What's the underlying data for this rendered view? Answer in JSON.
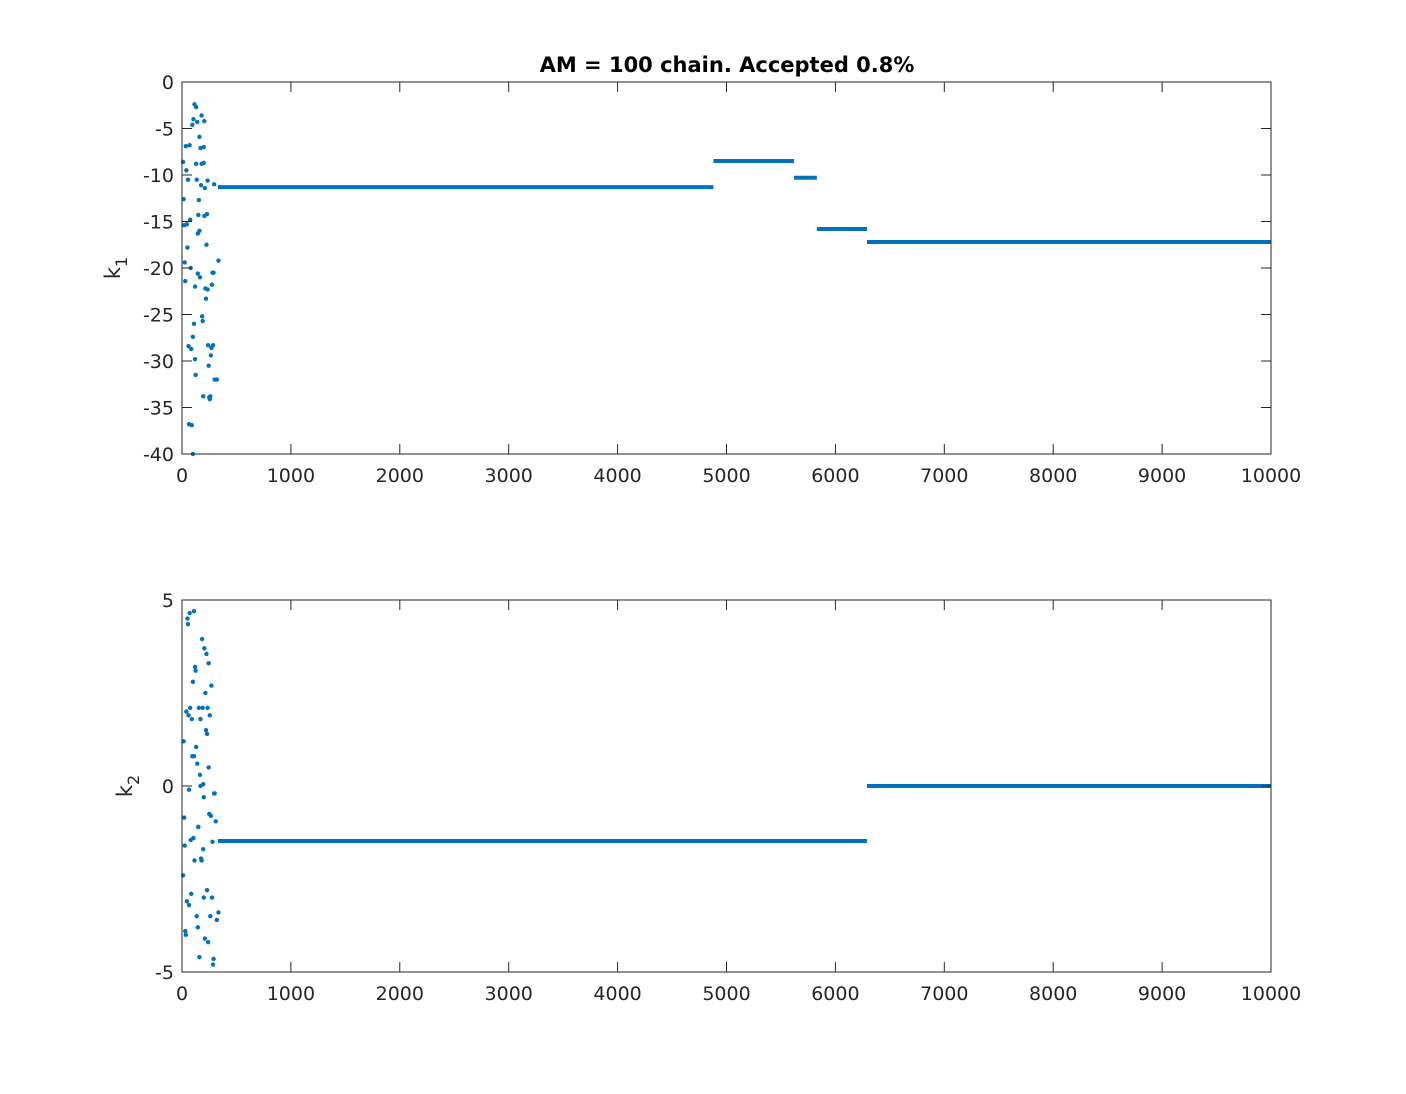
{
  "chart_data": [
    {
      "type": "scatter",
      "title": "AM = 100 chain. Accepted 0.8%",
      "ylabel_main": "k",
      "ylabel_sub": "1",
      "xlim": [
        0,
        10000
      ],
      "ylim": [
        -40,
        0
      ],
      "xticks": [
        0,
        1000,
        2000,
        3000,
        4000,
        5000,
        6000,
        7000,
        8000,
        9000,
        10000
      ],
      "yticks": [
        0,
        -5,
        -10,
        -15,
        -20,
        -25,
        -30,
        -35,
        -40
      ],
      "color": "#0072BD",
      "points": [
        [
          10,
          -8.6
        ],
        [
          15,
          -12.6
        ],
        [
          20,
          -15.4
        ],
        [
          25,
          -19.4
        ],
        [
          30,
          -21.4
        ],
        [
          35,
          -6.9
        ],
        [
          40,
          -9.5
        ],
        [
          45,
          -15.3
        ],
        [
          50,
          -17.8
        ],
        [
          55,
          -10.5
        ],
        [
          60,
          -28.4
        ],
        [
          65,
          -36.8
        ],
        [
          70,
          -6.8
        ],
        [
          75,
          -14.8
        ],
        [
          80,
          -20.0
        ],
        [
          85,
          -28.7
        ],
        [
          90,
          -36.9
        ],
        [
          95,
          -4.6
        ],
        [
          100,
          -27.4
        ],
        [
          105,
          -4.0
        ],
        [
          110,
          -26.0
        ],
        [
          115,
          -2.4
        ],
        [
          120,
          -29.8
        ],
        [
          125,
          -31.5
        ],
        [
          130,
          -2.7
        ],
        [
          135,
          -10.5
        ],
        [
          140,
          -4.3
        ],
        [
          145,
          -20.6
        ],
        [
          150,
          -14.3
        ],
        [
          155,
          -12.7
        ],
        [
          160,
          -16.0
        ],
        [
          165,
          -21.0
        ],
        [
          170,
          -7.1
        ],
        [
          175,
          -11.1
        ],
        [
          180,
          -3.6
        ],
        [
          185,
          -25.2
        ],
        [
          190,
          -25.7
        ],
        [
          195,
          -33.8
        ],
        [
          200,
          -8.7
        ],
        [
          205,
          -4.2
        ],
        [
          210,
          -11.4
        ],
        [
          215,
          -22.2
        ],
        [
          220,
          -23.3
        ],
        [
          225,
          -17.5
        ],
        [
          230,
          -14.2
        ],
        [
          235,
          -10.6
        ],
        [
          240,
          -28.3
        ],
        [
          245,
          -30.5
        ],
        [
          250,
          -33.9
        ],
        [
          255,
          -34.1
        ],
        [
          260,
          -33.8
        ],
        [
          265,
          -29.4
        ],
        [
          270,
          -28.6
        ],
        [
          275,
          -21.8
        ],
        [
          280,
          -20.5
        ],
        [
          285,
          -28.3
        ],
        [
          290,
          -20.5
        ],
        [
          295,
          -11.0
        ],
        [
          300,
          -32.0
        ],
        [
          320,
          -32.0
        ],
        [
          335,
          -19.2
        ],
        [
          100,
          -40.0
        ],
        [
          160,
          -5.9
        ],
        [
          200,
          -7.0
        ],
        [
          130,
          -8.8
        ],
        [
          180,
          -8.8
        ],
        [
          235,
          -22.3
        ],
        [
          145,
          -16.3
        ],
        [
          205,
          -14.4
        ],
        [
          120,
          -22.0
        ]
      ],
      "segments": [
        [
          330,
          4880,
          -11.3
        ],
        [
          4880,
          5620,
          -8.5
        ],
        [
          5620,
          5830,
          -10.3
        ],
        [
          5830,
          6290,
          -15.8
        ],
        [
          6290,
          10000,
          -17.2
        ]
      ]
    },
    {
      "type": "scatter",
      "title": "",
      "ylabel_main": "k",
      "ylabel_sub": "2",
      "xlim": [
        0,
        10000
      ],
      "ylim": [
        -5,
        5
      ],
      "xticks": [
        0,
        1000,
        2000,
        3000,
        4000,
        5000,
        6000,
        7000,
        8000,
        9000,
        10000
      ],
      "yticks": [
        5,
        0,
        -5
      ],
      "color": "#0072BD",
      "points": [
        [
          10,
          -2.4
        ],
        [
          15,
          1.2
        ],
        [
          20,
          -0.85
        ],
        [
          25,
          -1.6
        ],
        [
          30,
          -3.9
        ],
        [
          35,
          -4.0
        ],
        [
          40,
          2.0
        ],
        [
          45,
          -3.1
        ],
        [
          50,
          4.5
        ],
        [
          55,
          4.35
        ],
        [
          60,
          1.9
        ],
        [
          65,
          -3.2
        ],
        [
          70,
          4.65
        ],
        [
          75,
          2.1
        ],
        [
          80,
          -1.45
        ],
        [
          85,
          -2.9
        ],
        [
          90,
          1.8
        ],
        [
          95,
          0.8
        ],
        [
          100,
          2.8
        ],
        [
          105,
          -1.4
        ],
        [
          110,
          4.7
        ],
        [
          115,
          -2.0
        ],
        [
          120,
          3.2
        ],
        [
          125,
          3.1
        ],
        [
          130,
          1.05
        ],
        [
          135,
          -3.5
        ],
        [
          140,
          0.6
        ],
        [
          145,
          -3.8
        ],
        [
          150,
          -1.1
        ],
        [
          155,
          2.1
        ],
        [
          160,
          -4.6
        ],
        [
          165,
          0.3
        ],
        [
          170,
          1.8
        ],
        [
          175,
          -1.95
        ],
        [
          180,
          -2.0
        ],
        [
          185,
          3.95
        ],
        [
          190,
          2.1
        ],
        [
          195,
          -1.7
        ],
        [
          200,
          -3.0
        ],
        [
          205,
          3.7
        ],
        [
          210,
          -4.1
        ],
        [
          215,
          2.5
        ],
        [
          220,
          1.5
        ],
        [
          225,
          3.55
        ],
        [
          230,
          -2.8
        ],
        [
          235,
          2.1
        ],
        [
          240,
          -4.2
        ],
        [
          245,
          3.3
        ],
        [
          250,
          -0.75
        ],
        [
          255,
          1.9
        ],
        [
          260,
          -3.5
        ],
        [
          265,
          -0.8
        ],
        [
          270,
          2.7
        ],
        [
          275,
          -3.0
        ],
        [
          280,
          -1.5
        ],
        [
          285,
          -4.8
        ],
        [
          290,
          -4.65
        ],
        [
          295,
          -0.2
        ],
        [
          300,
          -0.2
        ],
        [
          310,
          -0.95
        ],
        [
          320,
          -3.6
        ],
        [
          335,
          -3.4
        ],
        [
          170,
          0.0
        ],
        [
          195,
          0.05
        ],
        [
          150,
          -1.1
        ],
        [
          110,
          0.8
        ],
        [
          65,
          -0.1
        ],
        [
          230,
          1.4
        ],
        [
          200,
          -0.3
        ],
        [
          245,
          0.5
        ]
      ],
      "segments": [
        [
          330,
          6290,
          -1.48
        ],
        [
          6290,
          10000,
          0.0
        ]
      ]
    }
  ]
}
